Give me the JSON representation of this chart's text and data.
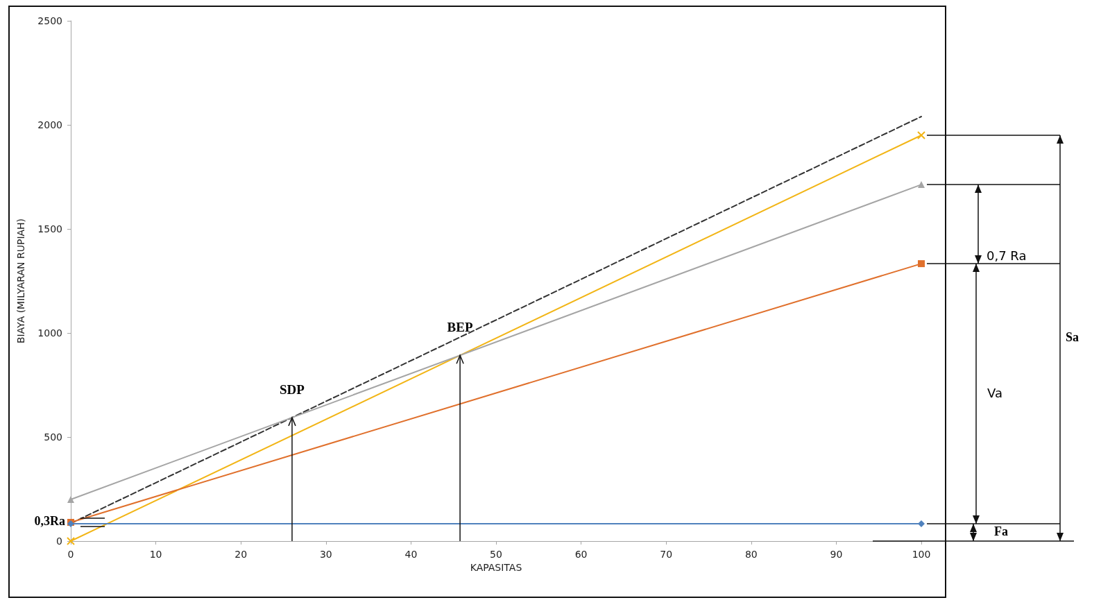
{
  "chart_data": {
    "type": "line",
    "xlabel": "KAPASITAS",
    "ylabel": "BIAYA (MILYARAN RUPIAH)",
    "x": [
      0,
      100
    ],
    "xlim": [
      0,
      100
    ],
    "xticks": [
      0,
      10,
      20,
      30,
      40,
      50,
      60,
      70,
      80,
      90,
      100
    ],
    "ylim": [
      0,
      2500
    ],
    "yticks": [
      0,
      500,
      1000,
      1500,
      2000,
      2500
    ],
    "grid": false,
    "series": [
      {
        "color": "#4f81bd",
        "values": [
          83,
          83
        ],
        "marker": "diamond"
      },
      {
        "color": "#e0702c",
        "values": [
          90,
          1333
        ],
        "marker": "square"
      },
      {
        "color": "#a5a5a5",
        "values": [
          200,
          1713
        ],
        "marker": "triangle"
      },
      {
        "color": "#f2b516",
        "values": [
          0,
          1950
        ],
        "marker": "cross"
      },
      {
        "color": "#333333",
        "values": [
          85,
          2040
        ],
        "marker": "none",
        "line_style": "dashed"
      }
    ],
    "annotations": [
      "SDP",
      "BEP",
      "0,3Ra",
      "0,7 Ra",
      "Va",
      "Sa",
      "Fa"
    ]
  }
}
